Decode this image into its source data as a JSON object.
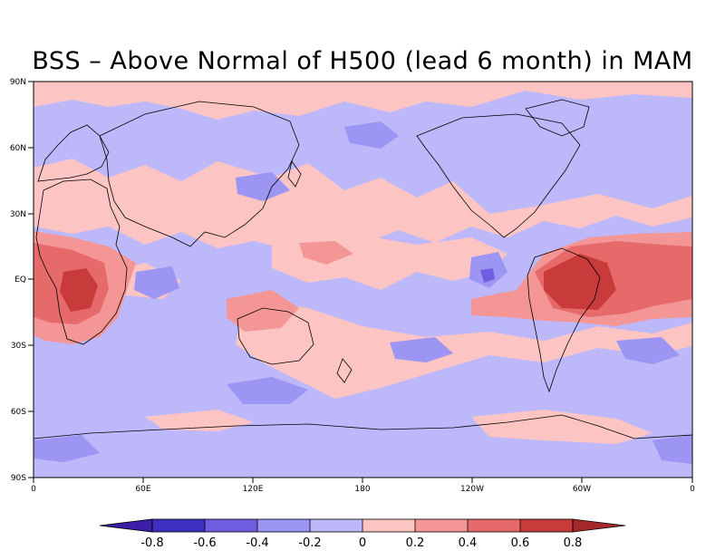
{
  "title": "BSS – Above Normal of H500 (lead 6 month) in MAM",
  "map": {
    "lon_labels": [
      "0",
      "60E",
      "120E",
      "180",
      "120W",
      "60W",
      "0"
    ],
    "lat_labels": [
      "90N",
      "60N",
      "30N",
      "EQ",
      "30S",
      "60S",
      "90S"
    ],
    "background_value": "-0.2 to 0"
  },
  "colorbar": {
    "labels": [
      "-0.8",
      "-0.6",
      "-0.4",
      "-0.2",
      "0",
      "0.2",
      "0.4",
      "0.6",
      "0.8"
    ],
    "colors": [
      "#3c1ea8",
      "#3f2fc2",
      "#6f5fe0",
      "#9c95f3",
      "#bcb8fa",
      "#fdc4c4",
      "#f49696",
      "#e66a6a",
      "#c93a3a",
      "#a5282a"
    ]
  }
}
